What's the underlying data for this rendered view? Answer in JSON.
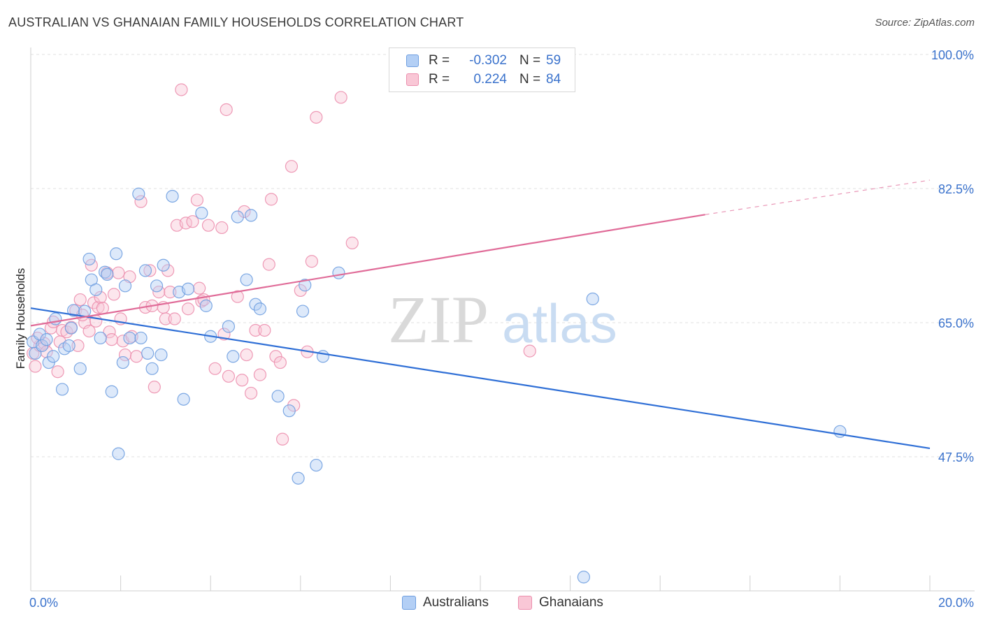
{
  "title": "AUSTRALIAN VS GHANAIAN FAMILY HOUSEHOLDS CORRELATION CHART",
  "source": "Source: ZipAtlas.com",
  "watermark": {
    "zip": "ZIP",
    "atlas": "atlas"
  },
  "legend": {
    "rows": [
      {
        "r_label": "R =",
        "r_value": "-0.302",
        "n_label": "N =",
        "n_value": "59",
        "color": "#6f9fe0"
      },
      {
        "r_label": "R =",
        "r_value": "0.224",
        "n_label": "N =",
        "n_value": "84",
        "color": "#ec8fae"
      }
    ]
  },
  "chart_data": {
    "type": "scatter",
    "title": "AUSTRALIAN VS GHANAIAN FAMILY HOUSEHOLDS CORRELATION CHART",
    "xlabel": "",
    "ylabel": "Family Households",
    "xlim": [
      0,
      20
    ],
    "ylim": [
      30,
      100
    ],
    "x_tick_labels": [
      "0.0%",
      "20.0%"
    ],
    "y_tick_labels": [
      "100.0%",
      "82.5%",
      "65.0%",
      "47.5%"
    ],
    "y_ticks": [
      100,
      82.5,
      65,
      47.5
    ],
    "grid": true,
    "legend_position": "top-center",
    "colors": {
      "Australians": "#6f9fe0",
      "Ghanaians": "#ec8fae",
      "Australians_line": "#2f6fd6",
      "Ghanaians_line": "#e06b98"
    },
    "trendlines": [
      {
        "series": "Australians",
        "x": [
          0,
          20
        ],
        "y": [
          66.9,
          48.6
        ],
        "dashed_extension": false
      },
      {
        "series": "Ghanaians",
        "x": [
          0,
          15
        ],
        "y": [
          64.6,
          79.1
        ],
        "dashed_to": [
          20,
          83.6
        ]
      }
    ],
    "series": [
      {
        "name": "Australians",
        "points": [
          [
            0.05,
            62.5
          ],
          [
            0.1,
            61.0
          ],
          [
            0.2,
            63.5
          ],
          [
            0.25,
            62.0
          ],
          [
            0.35,
            62.8
          ],
          [
            0.4,
            59.8
          ],
          [
            0.5,
            60.6
          ],
          [
            0.55,
            65.5
          ],
          [
            0.7,
            56.3
          ],
          [
            0.75,
            61.6
          ],
          [
            0.85,
            62.0
          ],
          [
            0.9,
            64.3
          ],
          [
            0.95,
            66.6
          ],
          [
            1.1,
            59.0
          ],
          [
            1.2,
            66.5
          ],
          [
            1.3,
            73.3
          ],
          [
            1.35,
            70.6
          ],
          [
            1.45,
            69.3
          ],
          [
            1.55,
            63.0
          ],
          [
            1.65,
            71.6
          ],
          [
            1.7,
            71.3
          ],
          [
            1.8,
            56.0
          ],
          [
            1.9,
            74.0
          ],
          [
            1.95,
            47.9
          ],
          [
            2.05,
            59.8
          ],
          [
            2.1,
            69.8
          ],
          [
            2.2,
            63.0
          ],
          [
            2.4,
            81.8
          ],
          [
            2.45,
            63.0
          ],
          [
            2.55,
            71.8
          ],
          [
            2.6,
            61.0
          ],
          [
            2.7,
            59.0
          ],
          [
            2.8,
            69.8
          ],
          [
            2.9,
            60.8
          ],
          [
            2.95,
            72.5
          ],
          [
            3.15,
            81.5
          ],
          [
            3.3,
            69.0
          ],
          [
            3.4,
            55.0
          ],
          [
            3.5,
            69.4
          ],
          [
            3.8,
            79.3
          ],
          [
            3.9,
            67.2
          ],
          [
            4.0,
            63.2
          ],
          [
            4.4,
            64.5
          ],
          [
            4.5,
            60.6
          ],
          [
            4.6,
            78.8
          ],
          [
            4.8,
            70.6
          ],
          [
            4.9,
            79.0
          ],
          [
            5.0,
            67.4
          ],
          [
            5.1,
            66.8
          ],
          [
            5.5,
            55.4
          ],
          [
            5.75,
            53.5
          ],
          [
            5.95,
            44.7
          ],
          [
            6.05,
            66.5
          ],
          [
            6.1,
            69.9
          ],
          [
            6.35,
            46.4
          ],
          [
            6.5,
            60.6
          ],
          [
            6.85,
            71.5
          ],
          [
            12.5,
            68.1
          ],
          [
            18.0,
            50.8
          ],
          [
            12.3,
            31.8
          ]
        ]
      },
      {
        "name": "Ghanaians",
        "points": [
          [
            0.05,
            61.0
          ],
          [
            0.1,
            59.3
          ],
          [
            0.2,
            62.0
          ],
          [
            0.3,
            62.3
          ],
          [
            0.35,
            61.2
          ],
          [
            0.45,
            64.3
          ],
          [
            0.5,
            65.1
          ],
          [
            0.6,
            58.6
          ],
          [
            0.7,
            64.0
          ],
          [
            0.8,
            63.8
          ],
          [
            0.9,
            64.4
          ],
          [
            1.0,
            66.6
          ],
          [
            1.05,
            62.0
          ],
          [
            1.1,
            68.0
          ],
          [
            1.2,
            65.0
          ],
          [
            1.3,
            63.9
          ],
          [
            1.35,
            72.5
          ],
          [
            1.4,
            67.6
          ],
          [
            1.45,
            65.2
          ],
          [
            1.5,
            67.0
          ],
          [
            1.55,
            68.3
          ],
          [
            1.6,
            66.9
          ],
          [
            1.7,
            71.5
          ],
          [
            1.75,
            63.8
          ],
          [
            1.8,
            62.8
          ],
          [
            1.85,
            68.7
          ],
          [
            1.95,
            71.5
          ],
          [
            2.05,
            62.6
          ],
          [
            2.1,
            60.8
          ],
          [
            2.2,
            71.0
          ],
          [
            2.25,
            63.2
          ],
          [
            2.35,
            60.6
          ],
          [
            2.45,
            80.8
          ],
          [
            2.55,
            67.0
          ],
          [
            2.65,
            71.8
          ],
          [
            2.7,
            67.2
          ],
          [
            2.75,
            56.6
          ],
          [
            2.85,
            69.0
          ],
          [
            2.95,
            67.0
          ],
          [
            3.0,
            65.5
          ],
          [
            3.05,
            71.8
          ],
          [
            3.1,
            69.0
          ],
          [
            3.2,
            65.5
          ],
          [
            3.25,
            77.7
          ],
          [
            3.35,
            95.4
          ],
          [
            3.45,
            78.0
          ],
          [
            3.5,
            66.8
          ],
          [
            3.6,
            78.2
          ],
          [
            3.7,
            81.0
          ],
          [
            3.75,
            69.5
          ],
          [
            3.8,
            67.8
          ],
          [
            3.95,
            77.7
          ],
          [
            4.1,
            59.0
          ],
          [
            4.25,
            77.4
          ],
          [
            4.3,
            63.5
          ],
          [
            4.35,
            92.8
          ],
          [
            4.4,
            58.0
          ],
          [
            4.6,
            68.4
          ],
          [
            4.7,
            57.5
          ],
          [
            4.75,
            79.5
          ],
          [
            4.8,
            60.8
          ],
          [
            4.9,
            55.8
          ],
          [
            5.0,
            64.0
          ],
          [
            5.1,
            58.2
          ],
          [
            5.2,
            64.0
          ],
          [
            5.3,
            72.6
          ],
          [
            5.35,
            81.1
          ],
          [
            5.45,
            60.6
          ],
          [
            5.55,
            59.8
          ],
          [
            5.6,
            49.8
          ],
          [
            5.8,
            85.4
          ],
          [
            5.85,
            54.2
          ],
          [
            6.0,
            69.2
          ],
          [
            6.15,
            61.2
          ],
          [
            6.25,
            73.0
          ],
          [
            6.35,
            91.8
          ],
          [
            6.9,
            94.4
          ],
          [
            7.15,
            75.4
          ],
          [
            11.1,
            61.3
          ],
          [
            0.15,
            63.0
          ],
          [
            0.65,
            62.5
          ],
          [
            1.15,
            66.0
          ],
          [
            2.0,
            65.5
          ],
          [
            3.85,
            68.0
          ]
        ]
      }
    ]
  }
}
